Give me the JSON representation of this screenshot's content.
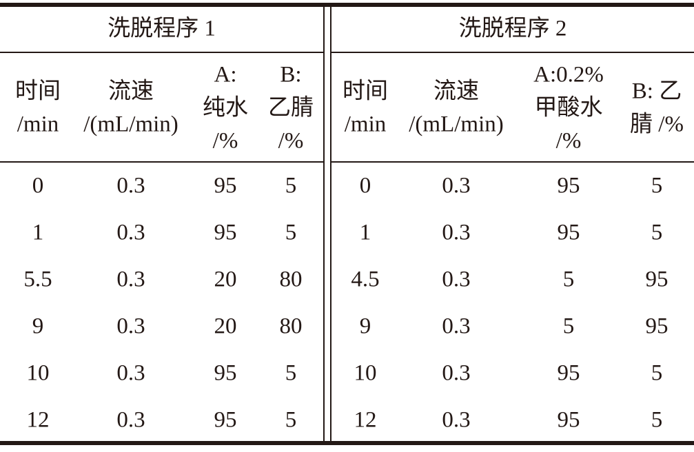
{
  "panels": [
    {
      "title": "洗脱程序 1",
      "headers": [
        [
          "时间",
          "/min"
        ],
        [
          "流速",
          "/(mL/min)"
        ],
        [
          "A:",
          "纯水",
          "/%"
        ],
        [
          "B:",
          "乙腈",
          "/%"
        ]
      ],
      "rows": [
        [
          "0",
          "0.3",
          "95",
          "5"
        ],
        [
          "1",
          "0.3",
          "95",
          "5"
        ],
        [
          "5.5",
          "0.3",
          "20",
          "80"
        ],
        [
          "9",
          "0.3",
          "20",
          "80"
        ],
        [
          "10",
          "0.3",
          "95",
          "5"
        ],
        [
          "12",
          "0.3",
          "95",
          "5"
        ]
      ]
    },
    {
      "title": "洗脱程序 2",
      "headers": [
        [
          "时间",
          "/min"
        ],
        [
          "流速",
          "/(mL/min)"
        ],
        [
          "A:0.2%",
          "甲酸水",
          "/%"
        ],
        [
          "B: 乙",
          "腈 /%"
        ]
      ],
      "rows": [
        [
          "0",
          "0.3",
          "95",
          "5"
        ],
        [
          "1",
          "0.3",
          "95",
          "5"
        ],
        [
          "4.5",
          "0.3",
          "5",
          "95"
        ],
        [
          "9",
          "0.3",
          "5",
          "95"
        ],
        [
          "10",
          "0.3",
          "95",
          "5"
        ],
        [
          "12",
          "0.3",
          "95",
          "5"
        ]
      ]
    }
  ]
}
